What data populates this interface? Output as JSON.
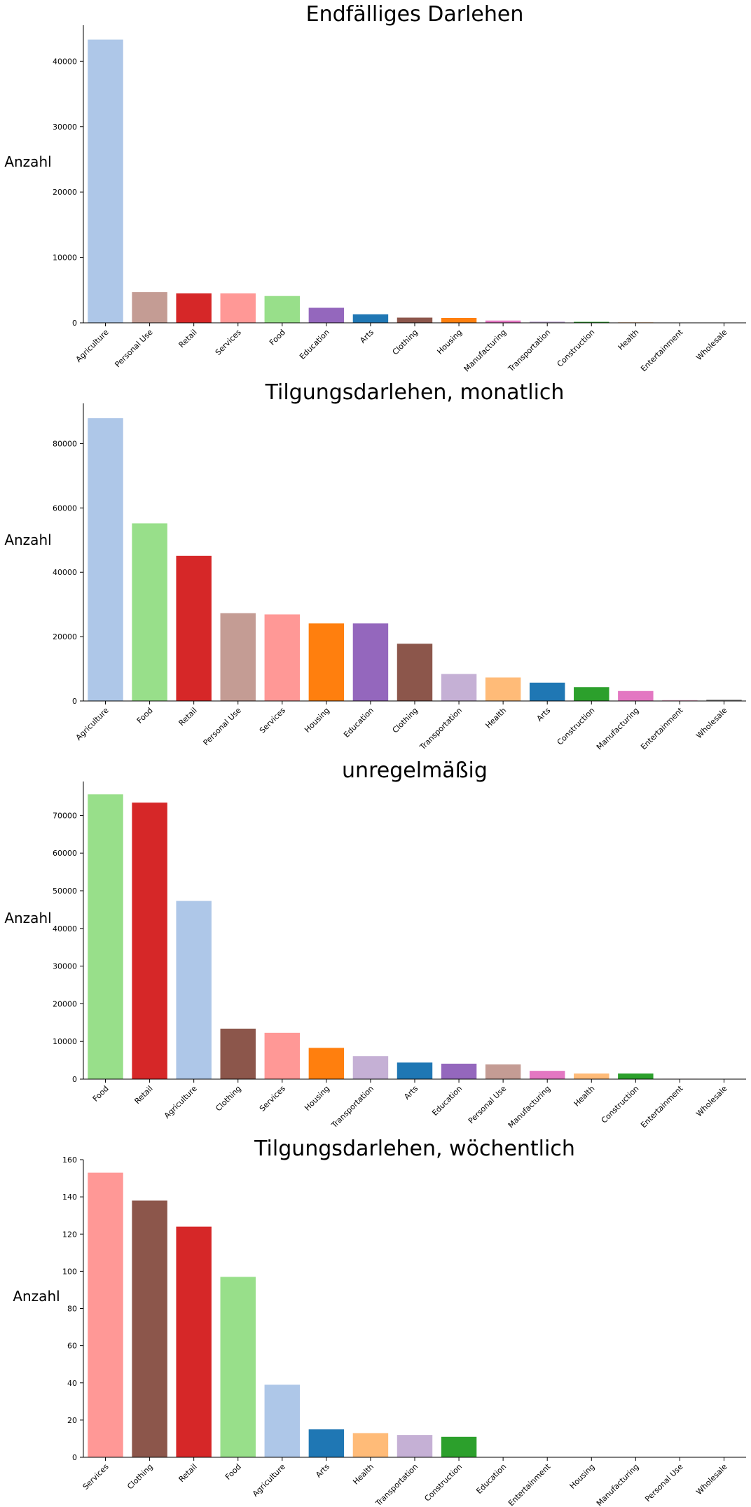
{
  "chart_data": [
    {
      "type": "bar",
      "title": "Endfälliges Darlehen",
      "xlabel": "",
      "ylabel": "Anzahl",
      "ylim": [
        0,
        45500
      ],
      "yticks": [
        0,
        10000,
        20000,
        30000,
        40000
      ],
      "categories": [
        "Agriculture",
        "Personal Use",
        "Retail",
        "Services",
        "Food",
        "Education",
        "Arts",
        "Clothing",
        "Housing",
        "Manufacturing",
        "Transportation",
        "Construction",
        "Health",
        "Entertainment",
        "Wholesale"
      ],
      "values": [
        43300,
        4700,
        4500,
        4500,
        4100,
        2300,
        1300,
        800,
        750,
        350,
        200,
        150,
        80,
        40,
        20
      ],
      "colors": [
        "#aec7e8",
        "#c49c94",
        "#d62728",
        "#ff9896",
        "#98df8a",
        "#9467bd",
        "#1f77b4",
        "#8c564b",
        "#ff7f0e",
        "#e377c2",
        "#c5b0d5",
        "#2ca02c",
        "#ffbb78",
        "#f7b6d2",
        "#7f7f7f"
      ],
      "grid": false,
      "legend": "none"
    },
    {
      "type": "bar",
      "title": "Tilgungsdarlehen, monatlich",
      "xlabel": "",
      "ylabel": "Anzahl",
      "ylim": [
        0,
        92500
      ],
      "yticks": [
        0,
        20000,
        40000,
        60000,
        80000
      ],
      "categories": [
        "Agriculture",
        "Food",
        "Retail",
        "Personal Use",
        "Services",
        "Housing",
        "Education",
        "Clothing",
        "Transportation",
        "Health",
        "Arts",
        "Construction",
        "Manufacturing",
        "Entertainment",
        "Wholesale"
      ],
      "values": [
        87900,
        55200,
        45100,
        27300,
        26900,
        24100,
        24100,
        17800,
        8400,
        7300,
        5700,
        4300,
        3100,
        300,
        400
      ],
      "colors": [
        "#aec7e8",
        "#98df8a",
        "#d62728",
        "#c49c94",
        "#ff9896",
        "#ff7f0e",
        "#9467bd",
        "#8c564b",
        "#c5b0d5",
        "#ffbb78",
        "#1f77b4",
        "#2ca02c",
        "#e377c2",
        "#f7b6d2",
        "#7f7f7f"
      ],
      "grid": false,
      "legend": "none"
    },
    {
      "type": "bar",
      "title": "unregelmäßig",
      "xlabel": "",
      "ylabel": "Anzahl",
      "ylim": [
        0,
        79000
      ],
      "yticks": [
        0,
        10000,
        20000,
        30000,
        40000,
        50000,
        60000,
        70000
      ],
      "categories": [
        "Food",
        "Retail",
        "Agriculture",
        "Clothing",
        "Services",
        "Housing",
        "Transportation",
        "Arts",
        "Education",
        "Personal Use",
        "Manufacturing",
        "Health",
        "Construction",
        "Entertainment",
        "Wholesale"
      ],
      "values": [
        75600,
        73400,
        47300,
        13400,
        12300,
        8300,
        6100,
        4400,
        4100,
        3900,
        2200,
        1500,
        1500,
        100,
        50
      ],
      "colors": [
        "#98df8a",
        "#d62728",
        "#aec7e8",
        "#8c564b",
        "#ff9896",
        "#ff7f0e",
        "#c5b0d5",
        "#1f77b4",
        "#9467bd",
        "#c49c94",
        "#e377c2",
        "#ffbb78",
        "#2ca02c",
        "#f7b6d2",
        "#7f7f7f"
      ],
      "grid": false,
      "legend": "none"
    },
    {
      "type": "bar",
      "title": "Tilgungsdarlehen, wöchentlich",
      "xlabel": "",
      "ylabel": "Anzahl",
      "ylim": [
        0,
        160
      ],
      "yticks": [
        0,
        20,
        40,
        60,
        80,
        100,
        120,
        140,
        160
      ],
      "categories": [
        "Services",
        "Clothing",
        "Retail",
        "Food",
        "Agriculture",
        "Arts",
        "Health",
        "Transportation",
        "Construction",
        "Education",
        "Entertainment",
        "Housing",
        "Manufacturing",
        "Personal Use",
        "Wholesale"
      ],
      "values": [
        153,
        138,
        124,
        97,
        39,
        15,
        13,
        12,
        11,
        0,
        0,
        0,
        0,
        0,
        0
      ],
      "colors": [
        "#ff9896",
        "#8c564b",
        "#d62728",
        "#98df8a",
        "#aec7e8",
        "#1f77b4",
        "#ffbb78",
        "#c5b0d5",
        "#2ca02c",
        "#9467bd",
        "#f7b6d2",
        "#ff7f0e",
        "#e377c2",
        "#c49c94",
        "#7f7f7f"
      ],
      "grid": false,
      "legend": "none"
    }
  ]
}
